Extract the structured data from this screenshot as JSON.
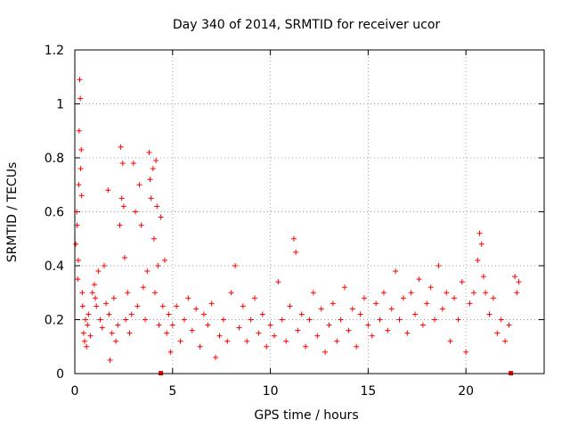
{
  "chart_data": {
    "type": "scatter",
    "title": "Day 340 of 2014, SRMTID for receiver ucor",
    "xlabel": "GPS time / hours",
    "ylabel": "SRMTID / TECUs",
    "xlim": [
      0,
      24
    ],
    "ylim": [
      0,
      1.2
    ],
    "x_ticks": [
      0,
      5,
      10,
      15,
      20
    ],
    "x_tick_labels": [
      "0",
      "5",
      "10",
      "15",
      "20"
    ],
    "y_ticks": [
      0,
      0.2,
      0.4,
      0.6,
      0.8,
      1,
      1.2
    ],
    "y_tick_labels": [
      "0",
      "0.2",
      "0.4",
      "0.6",
      "0.8",
      "1",
      "1.2"
    ],
    "grid": true,
    "marker": "plus",
    "color": "#ff0000",
    "series": [
      {
        "name": "SRMTID",
        "points": [
          [
            0.05,
            0.48
          ],
          [
            0.1,
            0.6
          ],
          [
            0.12,
            0.55
          ],
          [
            0.15,
            0.35
          ],
          [
            0.18,
            0.42
          ],
          [
            0.2,
            0.7
          ],
          [
            0.22,
            0.9
          ],
          [
            0.25,
            1.09
          ],
          [
            0.28,
            1.02
          ],
          [
            0.3,
            0.76
          ],
          [
            0.33,
            0.83
          ],
          [
            0.35,
            0.66
          ],
          [
            0.38,
            0.3
          ],
          [
            0.4,
            0.25
          ],
          [
            0.45,
            0.15
          ],
          [
            0.5,
            0.12
          ],
          [
            0.55,
            0.2
          ],
          [
            0.6,
            0.1
          ],
          [
            0.65,
            0.18
          ],
          [
            0.7,
            0.22
          ],
          [
            0.8,
            0.14
          ],
          [
            0.9,
            0.3
          ],
          [
            1.0,
            0.33
          ],
          [
            1.05,
            0.28
          ],
          [
            1.1,
            0.25
          ],
          [
            1.2,
            0.38
          ],
          [
            1.3,
            0.2
          ],
          [
            1.4,
            0.17
          ],
          [
            1.5,
            0.4
          ],
          [
            1.6,
            0.26
          ],
          [
            1.7,
            0.68
          ],
          [
            1.75,
            0.22
          ],
          [
            1.8,
            0.05
          ],
          [
            1.9,
            0.15
          ],
          [
            2.0,
            0.28
          ],
          [
            2.1,
            0.12
          ],
          [
            2.2,
            0.18
          ],
          [
            2.3,
            0.55
          ],
          [
            2.35,
            0.84
          ],
          [
            2.4,
            0.65
          ],
          [
            2.45,
            0.78
          ],
          [
            2.5,
            0.62
          ],
          [
            2.55,
            0.43
          ],
          [
            2.6,
            0.2
          ],
          [
            2.7,
            0.3
          ],
          [
            2.8,
            0.15
          ],
          [
            2.9,
            0.22
          ],
          [
            3.0,
            0.78
          ],
          [
            3.1,
            0.6
          ],
          [
            3.2,
            0.25
          ],
          [
            3.3,
            0.7
          ],
          [
            3.4,
            0.55
          ],
          [
            3.5,
            0.32
          ],
          [
            3.6,
            0.2
          ],
          [
            3.7,
            0.38
          ],
          [
            3.8,
            0.82
          ],
          [
            3.85,
            0.72
          ],
          [
            3.9,
            0.65
          ],
          [
            4.0,
            0.76
          ],
          [
            4.05,
            0.5
          ],
          [
            4.1,
            0.3
          ],
          [
            4.15,
            0.79
          ],
          [
            4.2,
            0.62
          ],
          [
            4.25,
            0.4
          ],
          [
            4.3,
            0.18
          ],
          [
            4.4,
            0.58
          ],
          [
            4.5,
            0.25
          ],
          [
            4.6,
            0.42
          ],
          [
            4.7,
            0.15
          ],
          [
            4.8,
            0.22
          ],
          [
            4.9,
            0.08
          ],
          [
            5.0,
            0.18
          ],
          [
            5.2,
            0.25
          ],
          [
            5.4,
            0.12
          ],
          [
            5.6,
            0.2
          ],
          [
            5.8,
            0.28
          ],
          [
            6.0,
            0.16
          ],
          [
            6.2,
            0.24
          ],
          [
            6.4,
            0.1
          ],
          [
            6.6,
            0.22
          ],
          [
            6.8,
            0.18
          ],
          [
            7.0,
            0.26
          ],
          [
            7.2,
            0.06
          ],
          [
            7.4,
            0.14
          ],
          [
            7.6,
            0.2
          ],
          [
            7.8,
            0.12
          ],
          [
            8.0,
            0.3
          ],
          [
            8.2,
            0.4
          ],
          [
            8.4,
            0.17
          ],
          [
            8.6,
            0.25
          ],
          [
            8.8,
            0.12
          ],
          [
            9.0,
            0.2
          ],
          [
            9.2,
            0.28
          ],
          [
            9.4,
            0.15
          ],
          [
            9.6,
            0.22
          ],
          [
            9.8,
            0.1
          ],
          [
            10.0,
            0.18
          ],
          [
            10.2,
            0.14
          ],
          [
            10.4,
            0.34
          ],
          [
            10.6,
            0.2
          ],
          [
            10.8,
            0.12
          ],
          [
            11.0,
            0.25
          ],
          [
            11.2,
            0.5
          ],
          [
            11.3,
            0.45
          ],
          [
            11.4,
            0.16
          ],
          [
            11.6,
            0.22
          ],
          [
            11.8,
            0.1
          ],
          [
            12.0,
            0.2
          ],
          [
            12.2,
            0.3
          ],
          [
            12.4,
            0.14
          ],
          [
            12.6,
            0.24
          ],
          [
            12.8,
            0.08
          ],
          [
            13.0,
            0.18
          ],
          [
            13.2,
            0.26
          ],
          [
            13.4,
            0.12
          ],
          [
            13.6,
            0.2
          ],
          [
            13.8,
            0.32
          ],
          [
            14.0,
            0.16
          ],
          [
            14.2,
            0.24
          ],
          [
            14.4,
            0.1
          ],
          [
            14.6,
            0.22
          ],
          [
            14.8,
            0.28
          ],
          [
            15.0,
            0.18
          ],
          [
            15.2,
            0.14
          ],
          [
            15.4,
            0.26
          ],
          [
            15.6,
            0.2
          ],
          [
            15.8,
            0.3
          ],
          [
            16.0,
            0.16
          ],
          [
            16.2,
            0.24
          ],
          [
            16.4,
            0.38
          ],
          [
            16.6,
            0.2
          ],
          [
            16.8,
            0.28
          ],
          [
            17.0,
            0.15
          ],
          [
            17.2,
            0.3
          ],
          [
            17.4,
            0.22
          ],
          [
            17.6,
            0.35
          ],
          [
            17.8,
            0.18
          ],
          [
            18.0,
            0.26
          ],
          [
            18.2,
            0.32
          ],
          [
            18.4,
            0.2
          ],
          [
            18.6,
            0.4
          ],
          [
            18.8,
            0.24
          ],
          [
            19.0,
            0.3
          ],
          [
            19.2,
            0.12
          ],
          [
            19.4,
            0.28
          ],
          [
            19.6,
            0.2
          ],
          [
            19.8,
            0.34
          ],
          [
            20.0,
            0.08
          ],
          [
            20.2,
            0.26
          ],
          [
            20.4,
            0.3
          ],
          [
            20.6,
            0.42
          ],
          [
            20.7,
            0.52
          ],
          [
            20.8,
            0.48
          ],
          [
            20.9,
            0.36
          ],
          [
            21.0,
            0.3
          ],
          [
            21.2,
            0.22
          ],
          [
            21.4,
            0.28
          ],
          [
            21.6,
            0.15
          ],
          [
            21.8,
            0.2
          ],
          [
            22.0,
            0.12
          ],
          [
            22.2,
            0.18
          ],
          [
            22.5,
            0.36
          ],
          [
            22.6,
            0.3
          ],
          [
            22.7,
            0.34
          ]
        ]
      }
    ],
    "zero_markers": [
      4.4,
      22.3
    ]
  }
}
